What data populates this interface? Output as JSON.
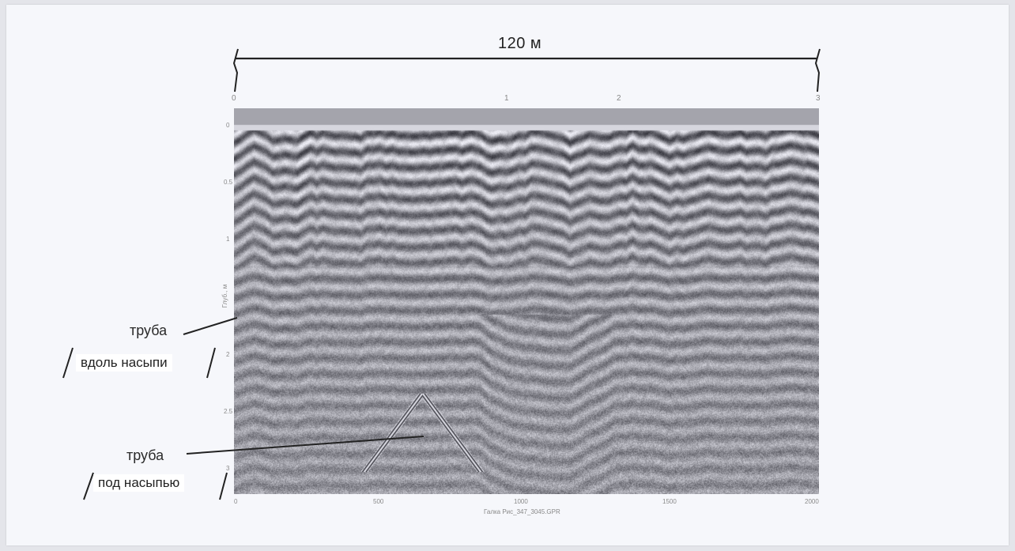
{
  "scale_bar": {
    "label": "120 м"
  },
  "markers": [
    "0",
    "1",
    "2",
    "3"
  ],
  "depth_axis": {
    "title": "Глуб., м",
    "ticks": [
      "0",
      "0.5",
      "1",
      "1.5",
      "2",
      "2.5",
      "3"
    ]
  },
  "trace_axis": {
    "ticks": [
      "0",
      "500",
      "1000",
      "1500",
      "2000"
    ],
    "file_label": "Галка  Рис_347_3045.GPR"
  },
  "annotations": {
    "pipe_along": {
      "title": "труба",
      "box": "вдоль насыпи"
    },
    "pipe_under": {
      "title": "труба",
      "box": "под насыпью"
    }
  },
  "colors": {
    "radar_bg": "#9a9ca4",
    "ink": "#222222",
    "paper": "#f6f7fb"
  }
}
